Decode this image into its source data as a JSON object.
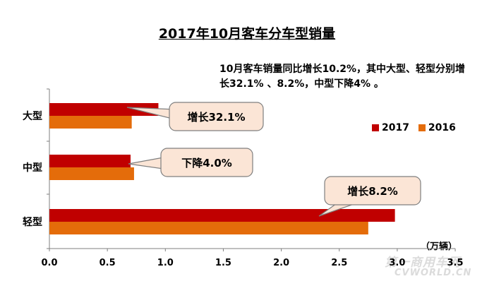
{
  "title": "2017年10月客车分车型销量",
  "note": "10月客车销量同比增长10.2%，其中大型、轻型分别增长32.1% 、8.2%，中型下降4% 。",
  "unit": "（万辆）",
  "watermark": {
    "main": "第一商用车网",
    "sub": "CVWORLD.CN"
  },
  "colors": {
    "2017": "#c00000",
    "2016": "#e46c0a",
    "callout_fill": "#fbe5d6",
    "callout_stroke": "#7f7f7f"
  },
  "chart_data": {
    "type": "bar",
    "orientation": "horizontal",
    "categories": [
      "大型",
      "中型",
      "轻型"
    ],
    "series": [
      {
        "name": "2017",
        "values": [
          0.94,
          0.7,
          2.98
        ]
      },
      {
        "name": "2016",
        "values": [
          0.71,
          0.73,
          2.75
        ]
      }
    ],
    "xlim": [
      0,
      3.5
    ],
    "xticks": [
      "0.0",
      "0.5",
      "1.0",
      "1.5",
      "2.0",
      "2.5",
      "3.0",
      "3.5"
    ],
    "legend_position": "right",
    "callouts": [
      {
        "category": "大型",
        "text": "增长32.1%"
      },
      {
        "category": "中型",
        "text": "下降4.0%"
      },
      {
        "category": "轻型",
        "text": "增长8.2%"
      }
    ]
  }
}
